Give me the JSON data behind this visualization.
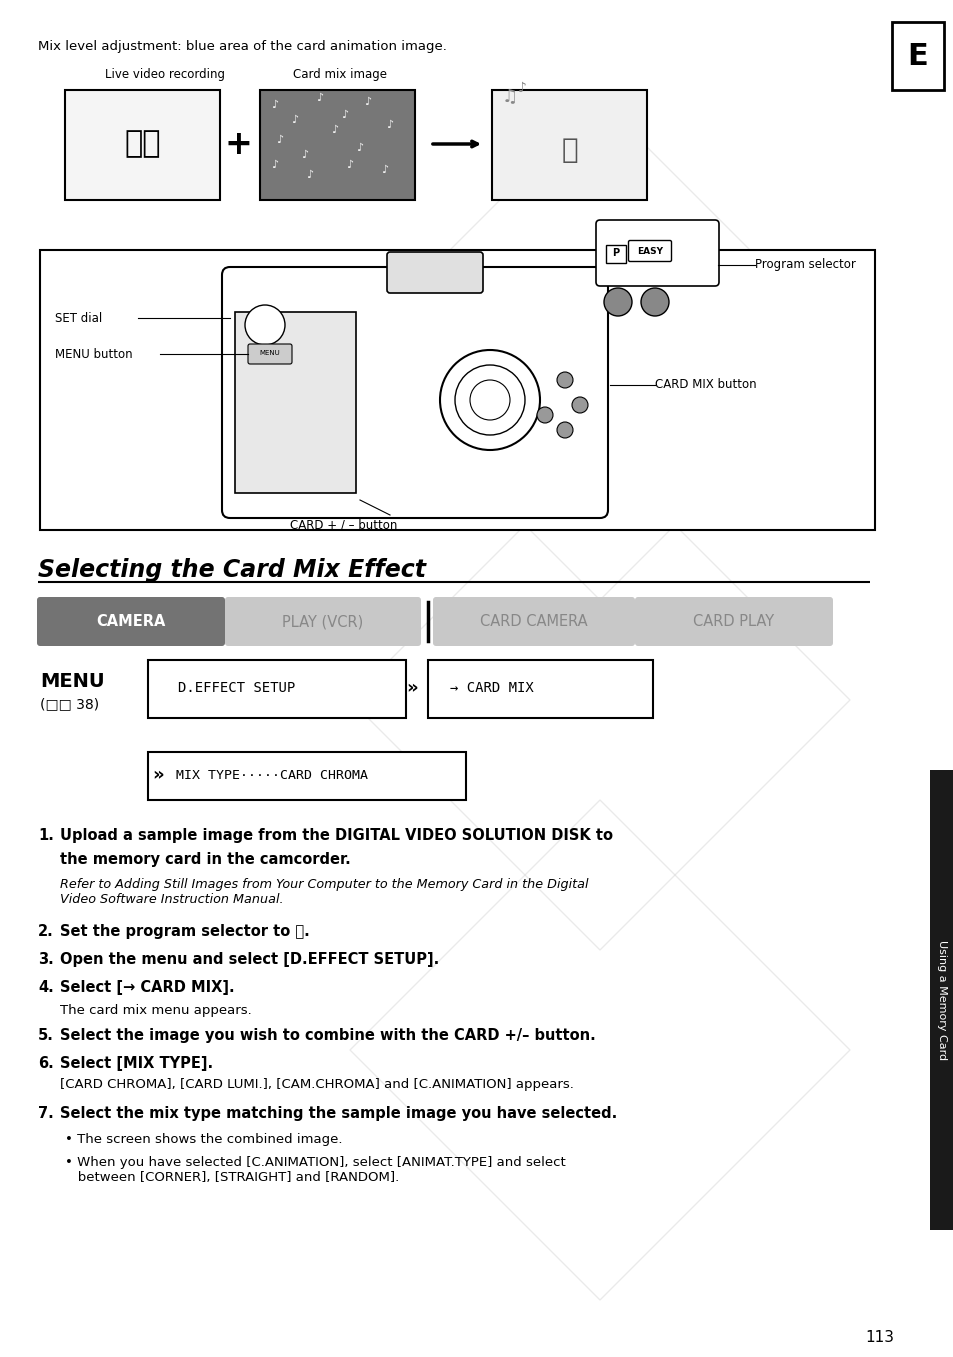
{
  "page_bg": "#ffffff",
  "page_number": "113",
  "top_note": "Mix level adjustment: blue area of the card animation image.",
  "label_live": "Live video recording",
  "label_card": "Card mix image",
  "section_title": "Selecting the Card Mix Effect",
  "tab_camera": "CAMERA",
  "tab_play": "PLAY (VCR)",
  "tab_card_camera": "CARD CAMERA",
  "tab_card_play": "CARD PLAY",
  "menu_label": "MENU",
  "menu_ref": "(□□ 38)",
  "menu_item1": "D.EFFECT SETUP",
  "menu_arrow": "»",
  "menu_item2": "→ CARD MIX",
  "menu_item3": "MIX TYPE·····CARD CHROMA",
  "side_label": "Using a Memory Card",
  "e_label": "E",
  "step1_line1": "Upload a sample image from the DIGITAL VIDEO SOLUTION DISK to",
  "step1_line2": "the memory card in the camcorder.",
  "step1_ref": "Refer to Adding Still Images from Your Computer to the Memory Card in the Digital\nVideo Software Instruction Manual.",
  "step2": "Set the program selector to Ⓟ.",
  "step3": "Open the menu and select [D.EFFECT SETUP].",
  "step4_bold": "Select [→ CARD MIX].",
  "step4_normal": "The card mix menu appears.",
  "step5": "Select the image you wish to combine with the CARD +/– button.",
  "step6_bold": "Select [MIX TYPE].",
  "step6_normal": "[CARD CHROMA], [CARD LUMI.], [CAM.CHROMA] and [C.ANIMATION] appears.",
  "step7": "Select the mix type matching the sample image you have selected.",
  "bullet1": "• The screen shows the combined image.",
  "bullet2": "• When you have selected [C.ANIMATION], select [ANIMAT.TYPE] and select\n   between [CORNER], [STRAIGHT] and [RANDOM].",
  "set_dial": "SET dial",
  "menu_btn_label": "MENU button",
  "card_plus_label": "CARD + / – button",
  "card_mix_btn_label": "CARD MIX button",
  "prog_sel_label": "Program selector"
}
